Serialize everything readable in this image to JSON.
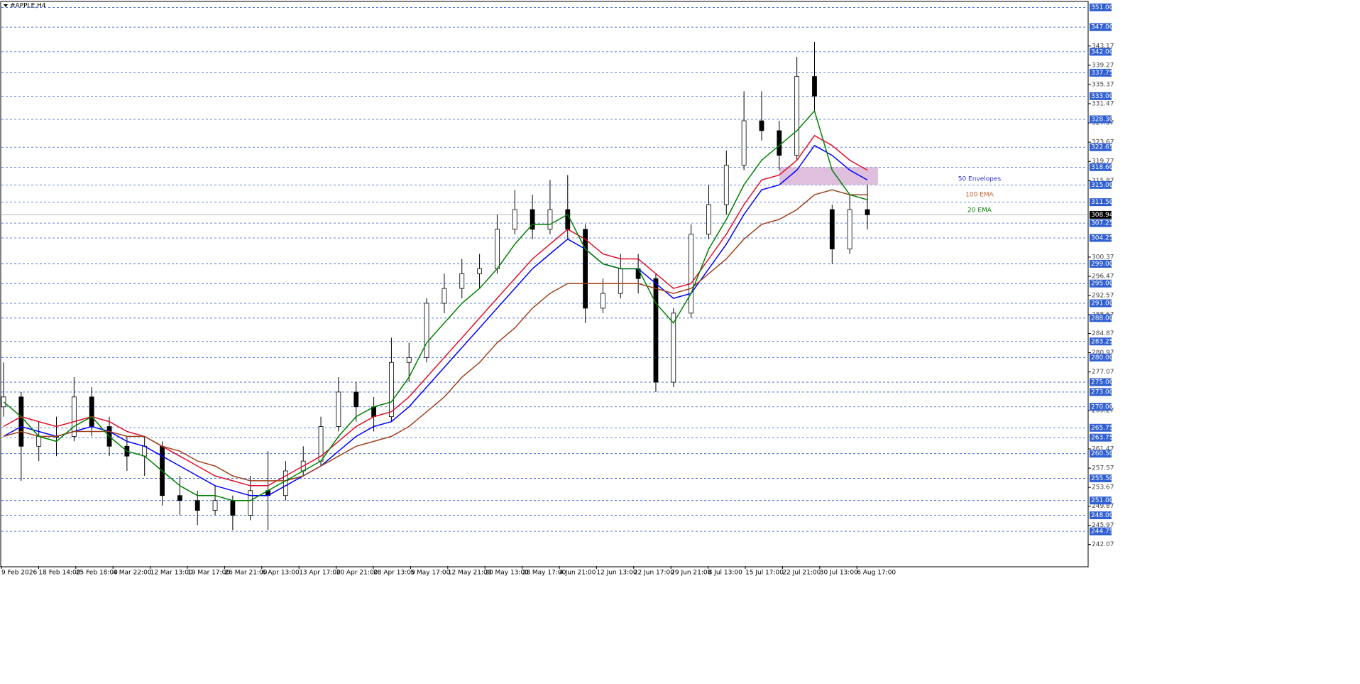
{
  "chart_data": {
    "type": "candlestick",
    "title": "#APPLE,H4",
    "x_labels": [
      "9 Feb 2026",
      "18 Feb 14:00",
      "25 Feb 18:00",
      "4 Mar 22:00",
      "12 Mar 13:00",
      "19 Mar 17:00",
      "26 Mar 21:00",
      "6 Apr 13:00",
      "13 Apr 17:00",
      "20 Apr 21:00",
      "28 Apr 13:00",
      "5 May 17:00",
      "12 May 21:00",
      "20 May 13:00",
      "28 May 17:00",
      "4 Jun 21:00",
      "12 Jun 13:00",
      "22 Jun 17:00",
      "29 Jun 21:00",
      "8 Jul 13:00",
      "15 Jul 17:00",
      "22 Jul 21:00",
      "30 Jul 13:00",
      "6 Aug 17:00"
    ],
    "open": [
      270,
      272,
      262,
      264,
      264,
      272,
      266,
      262,
      260,
      262,
      252,
      251,
      249,
      251,
      248,
      253,
      252,
      257,
      259,
      266,
      273,
      270,
      268,
      279,
      280,
      291,
      294,
      297,
      298,
      306,
      310,
      306,
      310,
      306,
      290,
      293,
      298,
      296,
      275,
      289,
      305,
      311,
      319,
      328,
      326,
      321,
      337,
      310,
      302,
      310
    ],
    "high": [
      279,
      273,
      267,
      268,
      276,
      274,
      268,
      264,
      264,
      263,
      256,
      253,
      254,
      252,
      256,
      261,
      259,
      262,
      268,
      276,
      275,
      272,
      284,
      283,
      292,
      297,
      300,
      301,
      309,
      314,
      313,
      316,
      317,
      307,
      296,
      301,
      301,
      297,
      290,
      307,
      315,
      322,
      334,
      334,
      328,
      341,
      344,
      311,
      313,
      315
    ],
    "low": [
      268,
      255,
      259,
      260,
      263,
      264,
      260,
      257,
      256,
      250,
      248,
      246,
      248,
      245,
      247,
      245,
      251,
      256,
      258,
      265,
      267,
      265,
      267,
      275,
      279,
      289,
      292,
      294,
      297,
      305,
      304,
      305,
      304,
      287,
      289,
      292,
      293,
      273,
      274,
      288,
      304,
      309,
      318,
      324,
      318,
      320,
      330,
      299,
      301,
      306
    ],
    "close": [
      272,
      262,
      264,
      264,
      272,
      266,
      262,
      260,
      262,
      252,
      251,
      249,
      251,
      248,
      253,
      252,
      257,
      259,
      266,
      273,
      270,
      268,
      279,
      280,
      291,
      294,
      297,
      298,
      306,
      310,
      306,
      310,
      306,
      290,
      293,
      298,
      296,
      275,
      289,
      305,
      311,
      319,
      328,
      326,
      321,
      337,
      333,
      302,
      310,
      308.94
    ],
    "series": [
      {
        "name": "50 Envelopes",
        "color": "#0000ff",
        "label_color": "#3333cc",
        "values": [
          264,
          266,
          265,
          264,
          265,
          266,
          265,
          263,
          262,
          260,
          258,
          256,
          254,
          253,
          252,
          252,
          254,
          256,
          258,
          261,
          264,
          266,
          267,
          270,
          274,
          278,
          282,
          286,
          290,
          294,
          298,
          301,
          304,
          302,
          299,
          298,
          298,
          295,
          292,
          293,
          298,
          303,
          309,
          314,
          315,
          318,
          323,
          321,
          318,
          316
        ],
        "upper_color": "#e0102a",
        "upper": [
          266,
          268,
          267,
          266,
          267,
          268,
          267,
          265,
          264,
          262,
          260,
          258,
          256,
          255,
          254,
          254,
          256,
          258,
          260,
          263,
          266,
          268,
          269,
          272,
          276,
          280,
          284,
          288,
          292,
          296,
          300,
          303,
          306,
          304,
          301,
          300,
          300,
          297,
          294,
          295,
          300,
          305,
          311,
          316,
          317,
          320,
          325,
          323,
          320,
          318
        ]
      },
      {
        "name": "100 EMA",
        "color": "#a0421c",
        "label_color": "#c86432",
        "values": [
          264,
          265,
          264,
          264,
          265,
          265,
          265,
          264,
          264,
          262,
          261,
          259,
          258,
          256,
          255,
          255,
          255,
          256,
          258,
          260,
          262,
          263,
          264,
          266,
          269,
          272,
          276,
          279,
          283,
          286,
          290,
          293,
          295,
          295,
          295,
          295,
          295,
          294,
          293,
          294,
          297,
          300,
          304,
          307,
          308,
          310,
          313,
          314,
          313,
          313
        ]
      },
      {
        "name": "20 EMA",
        "color": "#008000",
        "label_color": "#008000",
        "values": [
          271,
          268,
          264,
          263,
          266,
          268,
          264,
          261,
          260,
          257,
          254,
          252,
          252,
          251,
          251,
          253,
          255,
          257,
          259,
          264,
          268,
          270,
          271,
          276,
          283,
          287,
          291,
          294,
          298,
          303,
          307,
          307,
          309,
          302,
          299,
          298,
          298,
          291,
          287,
          293,
          302,
          308,
          315,
          320,
          323,
          326,
          330,
          318,
          313,
          312
        ]
      }
    ],
    "zone": {
      "low": 315,
      "high": 318.6,
      "color": "#d8b4d8"
    },
    "ylim": [
      237.7,
      352.5
    ],
    "yticks": [
      343.17,
      339.27,
      335.37,
      331.47,
      327.57,
      323.67,
      319.77,
      315.87,
      300.37,
      296.47,
      292.57,
      288.67,
      284.87,
      280.97,
      277.07,
      269.27,
      261.47,
      257.57,
      253.67,
      249.87,
      245.97,
      242.07
    ],
    "levels": [
      {
        "value": 351,
        "label": "351.00"
      },
      {
        "value": 347,
        "label": "347.00"
      },
      {
        "value": 342,
        "label": "342.00"
      },
      {
        "value": 337.75,
        "label": "337.75"
      },
      {
        "value": 333,
        "label": "333.00"
      },
      {
        "value": 328.3,
        "label": "328.30"
      },
      {
        "value": 322.65,
        "label": "322.65"
      },
      {
        "value": 318.6,
        "label": "318.60"
      },
      {
        "value": 315,
        "label": "315.00"
      },
      {
        "value": 311.5,
        "label": "311.50"
      },
      {
        "value": 307.25,
        "label": "307.25"
      },
      {
        "value": 304.25,
        "label": "304.25"
      },
      {
        "value": 299,
        "label": "299.00"
      },
      {
        "value": 295,
        "label": "295.00"
      },
      {
        "value": 291,
        "label": "291.00"
      },
      {
        "value": 288,
        "label": "288.00"
      },
      {
        "value": 283.25,
        "label": "283.25"
      },
      {
        "value": 280,
        "label": "280.00"
      },
      {
        "value": 275,
        "label": "275.00"
      },
      {
        "value": 273,
        "label": "273.00"
      },
      {
        "value": 270,
        "label": "270.00"
      },
      {
        "value": 265.75,
        "label": "265.75"
      },
      {
        "value": 263.75,
        "label": "263.75"
      },
      {
        "value": 260.5,
        "label": "260.50"
      },
      {
        "value": 255.5,
        "label": "255.50"
      },
      {
        "value": 251,
        "label": "251.00"
      },
      {
        "value": 248,
        "label": "248.00"
      },
      {
        "value": 244.75,
        "label": "244.75"
      }
    ],
    "level_color": "#2f5fd0",
    "last_price": {
      "value": 308.94,
      "label": "308.94"
    }
  }
}
